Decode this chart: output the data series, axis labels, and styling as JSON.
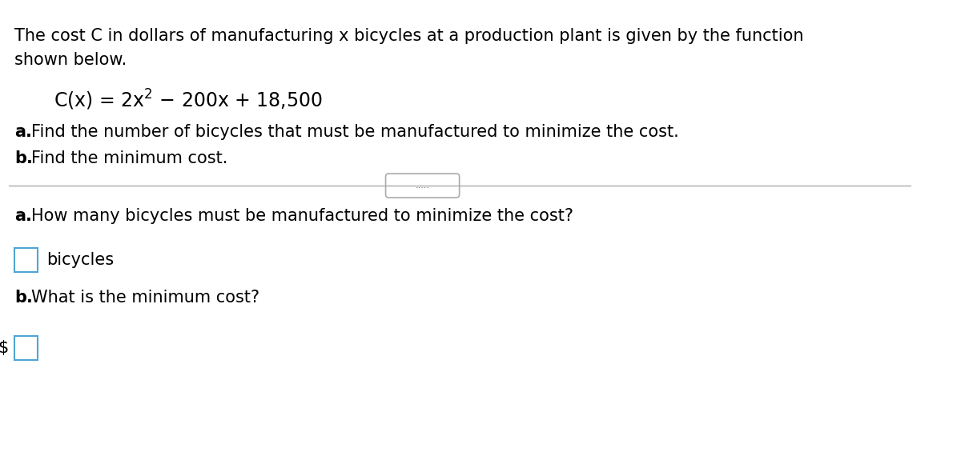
{
  "background_color": "#ffffff",
  "para_text": "The cost C in dollars of manufacturing x bicycles at a production plant is given by the function shown below.",
  "formula_text": "C(x) = 2x² − 200x + 18,500",
  "part_a_instruction": "a. Find the number of bicycles that must be manufactured to minimize the cost.",
  "part_b_instruction": "b. Find the minimum cost.",
  "divider_dots": ".....",
  "question_a": "a. How many bicycles must be manufactured to minimize the cost?",
  "label_bicycles": "bicycles",
  "question_b": "b. What is the minimum cost?",
  "dollar_sign": "$",
  "input_box_color": "#4da6d4",
  "text_color": "#000000",
  "font_size_body": 15,
  "font_size_formula": 16,
  "font_size_question": 15
}
